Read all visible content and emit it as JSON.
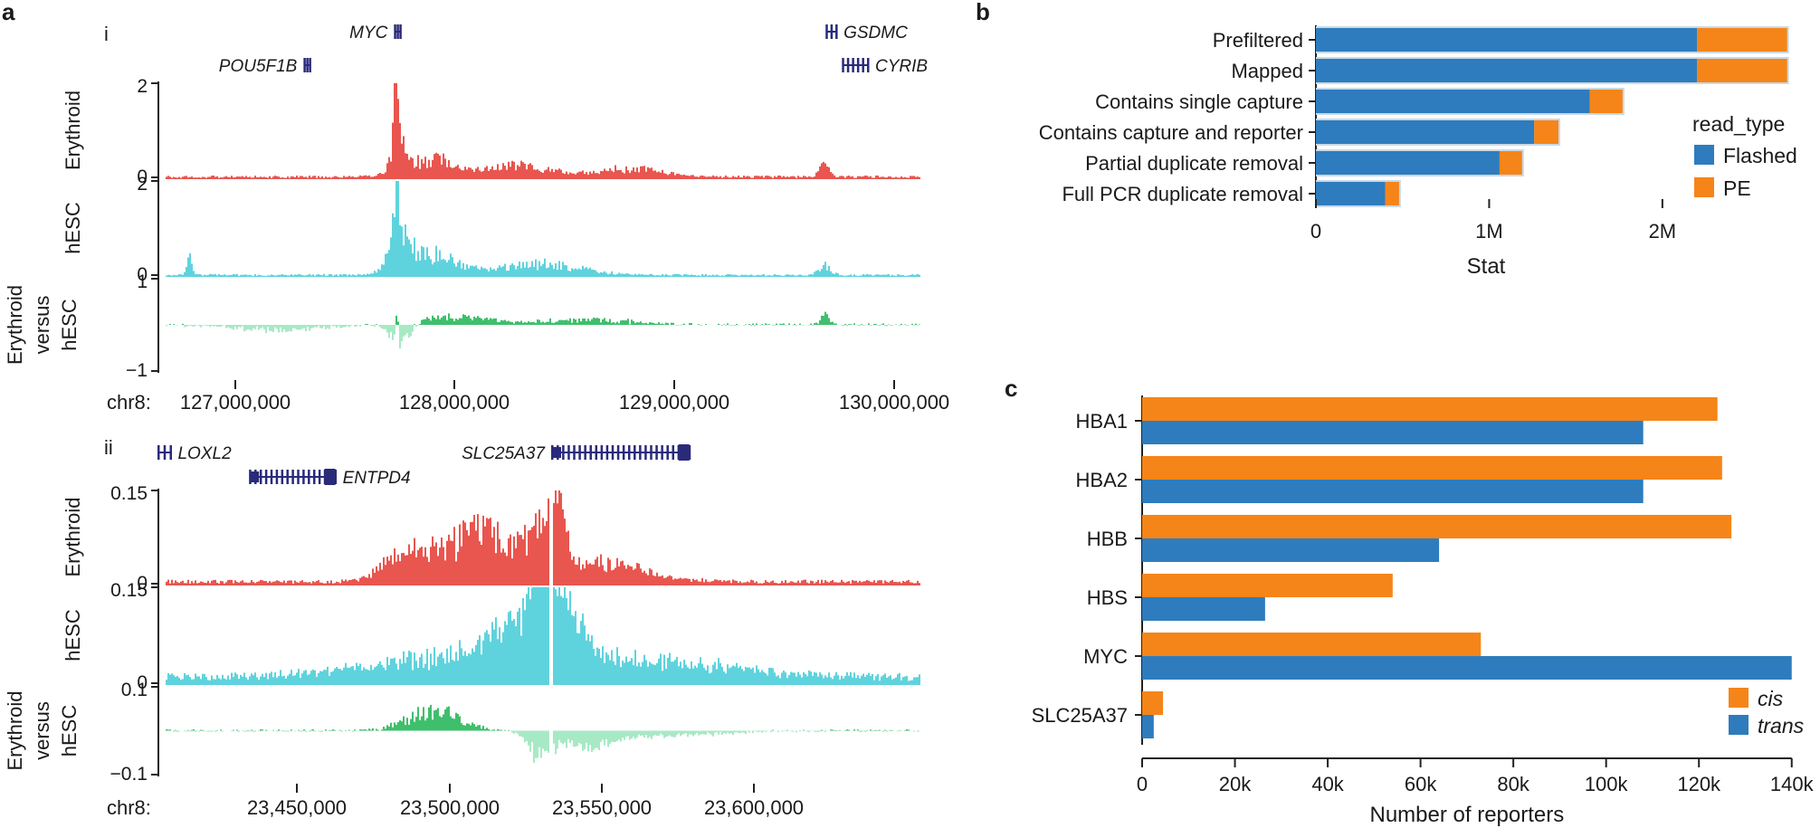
{
  "colors": {
    "erythroid": "#e8564f",
    "hesc": "#5fd3dd",
    "diff_pos": "#3fbf6c",
    "diff_neg": "#a8e9c5",
    "gene": "#2a2a7a",
    "flashed": "#2e7cbd",
    "pe": "#f58518",
    "shadow": "#c9d9e6"
  },
  "panel_a": {
    "label": "a",
    "subpanels": [
      {
        "label": "i",
        "chrom_label": "chr8:",
        "x_ticks": [
          "127,000,000",
          "128,000,000",
          "129,000,000",
          "130,000,000"
        ],
        "x_range": [
          126650000,
          130150000
        ],
        "genes": [
          {
            "name": "MYC",
            "start": 127735000,
            "end": 127742000,
            "row": 0,
            "label_side": "left"
          },
          {
            "name": "GSDMC",
            "start": 129715000,
            "end": 129760000,
            "row": 0,
            "label_side": "right"
          },
          {
            "name": "POU5F1B",
            "start": 127320000,
            "end": 127330000,
            "row": 1,
            "label_side": "left"
          },
          {
            "name": "CYRIB",
            "start": 129790000,
            "end": 129905000,
            "row": 1,
            "label_side": "right"
          }
        ],
        "tracks": [
          {
            "name": "Erythroid",
            "type": "erythroid",
            "y_top": "2",
            "y_bottom": "0",
            "ymax": 2,
            "ymin": 0,
            "peaks": [
              [
                127738000,
                1.9,
                12000
              ],
              [
                127745000,
                0.9,
                40000
              ],
              [
                127900000,
                0.4,
                150000
              ],
              [
                128300000,
                0.25,
                200000
              ],
              [
                129700000,
                0.28,
                30000
              ],
              [
                128800000,
                0.18,
                200000
              ]
            ],
            "base": 0.05
          },
          {
            "name": "hESC",
            "type": "hesc",
            "y_top": "2",
            "y_bottom": "0",
            "ymax": 2,
            "ymin": 0,
            "peaks": [
              [
                127738000,
                1.95,
                10000
              ],
              [
                127750000,
                0.9,
                60000
              ],
              [
                126790000,
                0.55,
                15000
              ],
              [
                127900000,
                0.45,
                160000
              ],
              [
                128400000,
                0.25,
                250000
              ],
              [
                129700000,
                0.2,
                40000
              ]
            ],
            "base": 0.04
          },
          {
            "name": "Erythroid versus hESC",
            "type": "diff",
            "y_top": "1",
            "y_bottom": "−1",
            "ymax": 1,
            "ymin": -1,
            "peaks": [
              [
                127738000,
                0.55,
                8000
              ],
              [
                127760000,
                -0.5,
                60000
              ],
              [
                128000000,
                0.2,
                200000
              ],
              [
                129700000,
                0.2,
                30000
              ],
              [
                127200000,
                -0.12,
                300000
              ],
              [
                128600000,
                0.12,
                300000
              ]
            ],
            "base": 0.0
          }
        ]
      },
      {
        "label": "ii",
        "chrom_label": "chr8:",
        "x_ticks": [
          "23,450,000",
          "23,500,000",
          "23,550,000",
          "23,600,000"
        ],
        "x_range": [
          23400000,
          23650000
        ],
        "genes": [
          {
            "name": "LOXL2",
            "start": 23400000,
            "end": 23404000,
            "row": 0,
            "label_side": "right"
          },
          {
            "name": "SLC25A37",
            "start": 23529000,
            "end": 23574000,
            "row": 0,
            "label_side": "left"
          },
          {
            "name": "ENTPD4",
            "start": 23430000,
            "end": 23458000,
            "row": 1,
            "label_side": "right"
          }
        ],
        "tracks": [
          {
            "name": "Erythroid",
            "type": "erythroid",
            "y_top": "0.15",
            "y_bottom": "0",
            "ymax": 0.15,
            "ymin": 0,
            "peaks": [
              [
                23505000,
                0.08,
                18000
              ],
              [
                23526000,
                0.075,
                6000
              ],
              [
                23531000,
                0.1,
                3000
              ],
              [
                23545000,
                0.03,
                20000
              ],
              [
                23480000,
                0.04,
                10000
              ]
            ],
            "base": 0.006
          },
          {
            "name": "hESC",
            "type": "hesc",
            "y_top": "0.15",
            "y_bottom": "0",
            "ymax": 0.15,
            "ymin": 0,
            "peaks": [
              [
                23525000,
                0.13,
                3000
              ],
              [
                23520000,
                0.07,
                12000
              ],
              [
                23533000,
                0.08,
                8000
              ],
              [
                23500000,
                0.035,
                40000
              ],
              [
                23560000,
                0.025,
                40000
              ]
            ],
            "base": 0.012
          },
          {
            "name": "Erythroid versus hESC",
            "type": "diff",
            "y_top": "0.1",
            "y_bottom": "−0.1",
            "ymax": 0.1,
            "ymin": -0.1,
            "peaks": [
              [
                23490000,
                0.045,
                12000
              ],
              [
                23525000,
                -0.06,
                5000
              ],
              [
                23540000,
                -0.03,
                12000
              ],
              [
                23560000,
                -0.012,
                30000
              ]
            ],
            "base": 0.0
          }
        ]
      }
    ]
  },
  "chart_data": [
    {
      "type": "bar",
      "panel": "b",
      "orientation": "horizontal",
      "stacked": true,
      "categories": [
        "Prefiltered",
        "Mapped",
        "Contains single capture",
        "Contains capture and reporter",
        "Partial duplicate removal",
        "Full PCR duplicate removal"
      ],
      "series": [
        {
          "name": "Flashed",
          "values": [
            2200000,
            2200000,
            1580000,
            1260000,
            1060000,
            400000
          ]
        },
        {
          "name": "PE",
          "values": [
            520000,
            520000,
            190000,
            140000,
            130000,
            80000
          ]
        }
      ],
      "xlabel": "Stat",
      "ylabel": "",
      "xlim": [
        0,
        2800000
      ],
      "x_ticks": [
        0,
        1000000,
        2000000
      ],
      "x_tick_labels": [
        "0",
        "1M",
        "2M"
      ],
      "legend_title": "read_type",
      "legend_position": "right"
    },
    {
      "type": "bar",
      "panel": "c",
      "orientation": "horizontal",
      "categories": [
        "HBA1",
        "HBA2",
        "HBB",
        "HBS",
        "MYC",
        "SLC25A37"
      ],
      "series": [
        {
          "name": "cis",
          "values": [
            124000,
            125000,
            127000,
            54000,
            73000,
            4500
          ]
        },
        {
          "name": "trans",
          "values": [
            108000,
            108000,
            64000,
            26500,
            140000,
            2500
          ]
        }
      ],
      "xlabel": "Number of reporters",
      "ylabel": "",
      "xlim": [
        0,
        142000
      ],
      "x_ticks": [
        0,
        20000,
        40000,
        60000,
        80000,
        100000,
        120000,
        140000
      ],
      "x_tick_labels": [
        "0",
        "20k",
        "40k",
        "60k",
        "80k",
        "100k",
        "120k",
        "140k"
      ],
      "legend_position": "bottom-right"
    }
  ]
}
